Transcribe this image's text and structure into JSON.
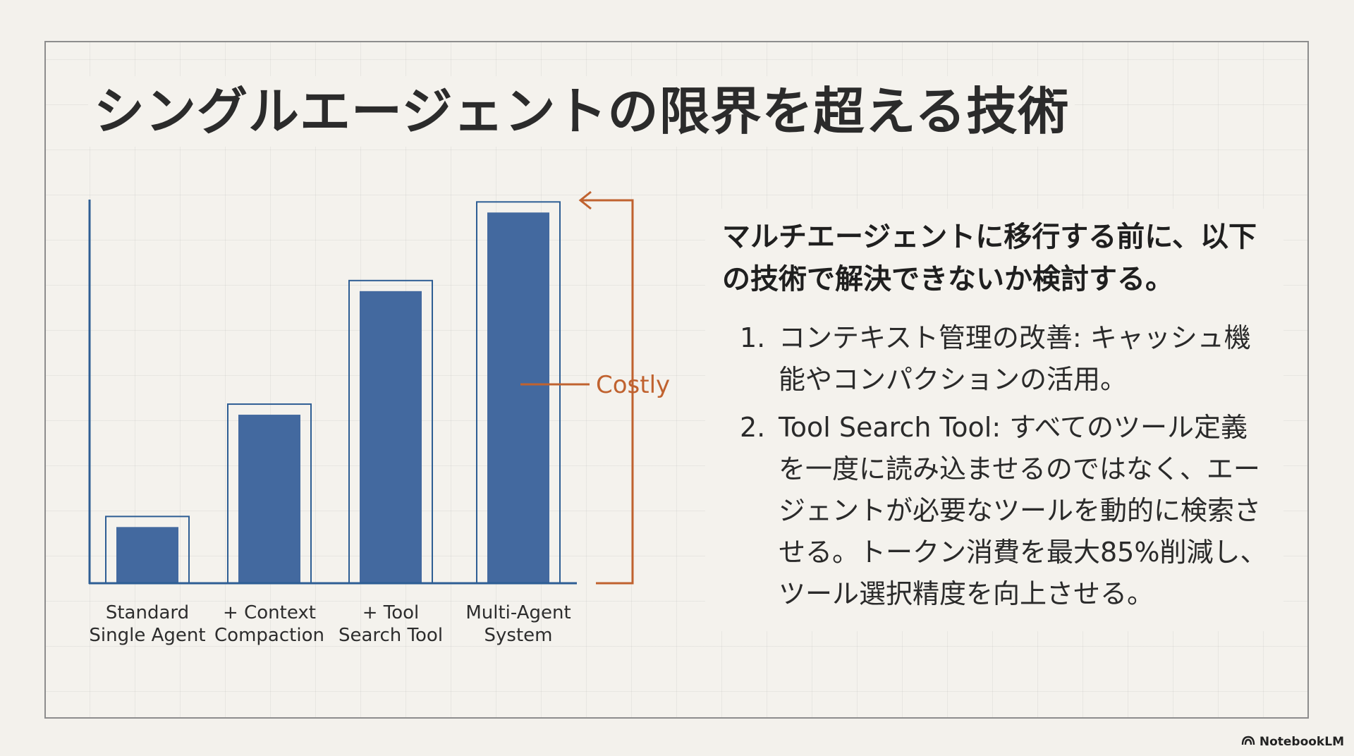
{
  "title": "シングルエージェントの限界を超える技術",
  "chart_data": {
    "type": "bar",
    "categories": [
      [
        "Standard",
        "Single Agent"
      ],
      [
        "+ Context",
        "Compaction"
      ],
      [
        "+ Tool",
        "Search Tool"
      ],
      [
        "Multi-Agent",
        "System"
      ]
    ],
    "values": [
      1.5,
      4.5,
      7.8,
      9.9
    ],
    "ylim": [
      0,
      10
    ],
    "annotation": "Costly",
    "colors": {
      "bar": "#43699f",
      "outline": "#2e5e94",
      "axis": "#2e5e94",
      "annotation": "#c0622f"
    }
  },
  "content": {
    "lead": "マルチエージェントに移行する前に、以下の技術で解決できないか検討する。",
    "items": [
      {
        "num": "1.",
        "text": "コンテキスト管理の改善: キャッシュ機能やコンパクションの活用。"
      },
      {
        "num": "2.",
        "text": "Tool Search Tool: すべてのツール定義を一度に読み込ませるのではなく、エージェントが必要なツールを動的に検索させる。トークン消費を最大85%削減し、ツール選択精度を向上させる。"
      }
    ]
  },
  "brand": {
    "label": "NotebookLM",
    "icon": "notebooklm-logo-icon"
  }
}
